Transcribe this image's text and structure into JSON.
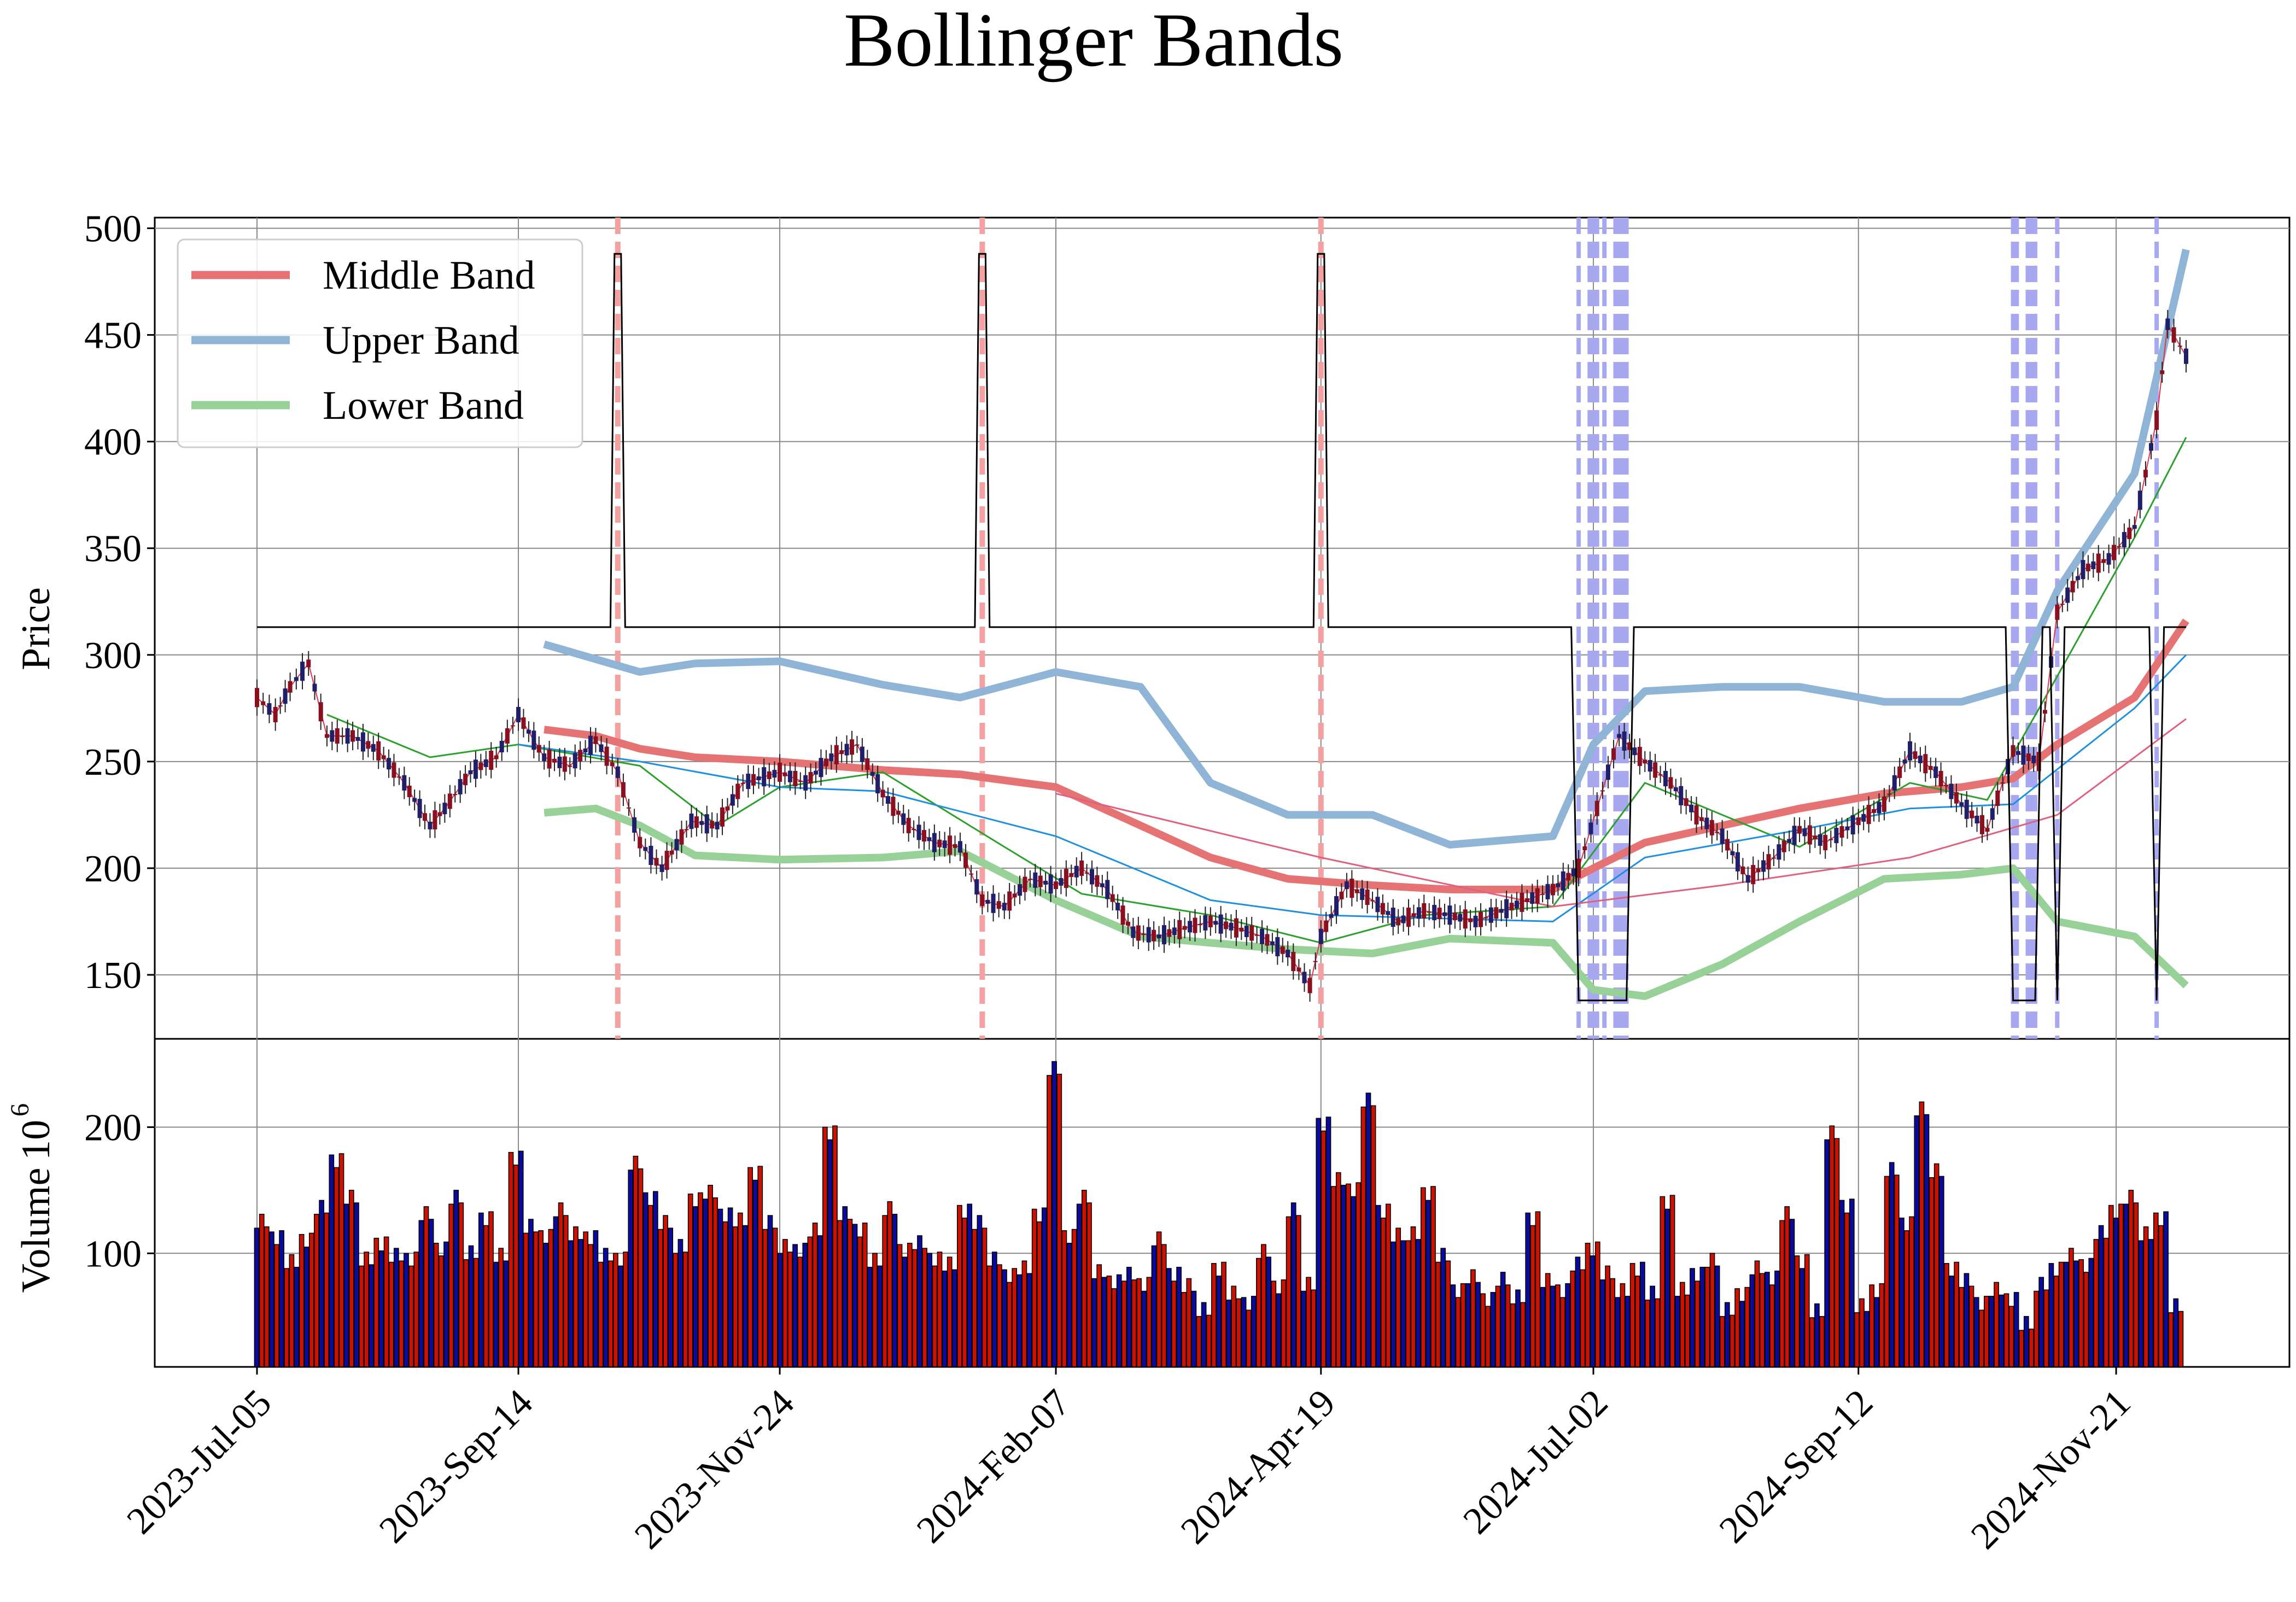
{
  "chart_data": {
    "type": "candlestick",
    "title": "Bollinger Bands",
    "price_panel": {
      "ylabel": "Price",
      "yticks": [
        150,
        200,
        250,
        300,
        350,
        400,
        450,
        500
      ],
      "ylim": [
        120,
        505
      ],
      "grid": true,
      "legend_position": "top-left",
      "legend": [
        "Middle Band",
        "Upper Band",
        "Lower Band"
      ],
      "colors": {
        "middle_band": "#e57373",
        "upper_band": "#8fb4d6",
        "lower_band": "#98d198",
        "ma_short": "#e0334d",
        "ma_mid_green": "#2ca02c",
        "ma_mid_blue": "#1f8fe0",
        "ma_long": "#e06080",
        "signal": "#000000",
        "sell_marker": "#f4a0a0",
        "buy_marker": "#a8a8f0"
      },
      "signal_levels": {
        "high": 488,
        "neutral": 313,
        "low": 138
      },
      "sell_marker_dates": [
        "2023-10-11",
        "2024-01-18",
        "2024-04-19"
      ],
      "buy_marker_dates": [
        "2024-06-28",
        "2024-07-01",
        "2024-07-02",
        "2024-07-03",
        "2024-07-05",
        "2024-07-08",
        "2024-07-09",
        "2024-07-10",
        "2024-07-11",
        "2024-10-24",
        "2024-10-25",
        "2024-10-28",
        "2024-10-29",
        "2024-10-30",
        "2024-11-05",
        "2024-12-02"
      ],
      "x_range": [
        "2023-07-05",
        "2024-12-10"
      ],
      "close_points": [
        [
          "2023-07-05",
          280
        ],
        [
          "2023-07-10",
          272
        ],
        [
          "2023-07-14",
          285
        ],
        [
          "2023-07-19",
          296
        ],
        [
          "2023-07-24",
          262
        ],
        [
          "2023-07-31",
          262
        ],
        [
          "2023-08-07",
          255
        ],
        [
          "2023-08-14",
          240
        ],
        [
          "2023-08-21",
          220
        ],
        [
          "2023-08-25",
          228
        ],
        [
          "2023-09-01",
          245
        ],
        [
          "2023-09-08",
          252
        ],
        [
          "2023-09-14",
          272
        ],
        [
          "2023-09-21",
          252
        ],
        [
          "2023-09-28",
          248
        ],
        [
          "2023-10-05",
          260
        ],
        [
          "2023-10-11",
          245
        ],
        [
          "2023-10-17",
          212
        ],
        [
          "2023-10-23",
          200
        ],
        [
          "2023-10-31",
          222
        ],
        [
          "2023-11-07",
          220
        ],
        [
          "2023-11-14",
          240
        ],
        [
          "2023-11-24",
          245
        ],
        [
          "2023-12-01",
          240
        ],
        [
          "2023-12-08",
          252
        ],
        [
          "2023-12-15",
          258
        ],
        [
          "2023-12-22",
          235
        ],
        [
          "2023-12-29",
          220
        ],
        [
          "2024-01-05",
          212
        ],
        [
          "2024-01-12",
          210
        ],
        [
          "2024-01-18",
          185
        ],
        [
          "2024-01-24",
          182
        ],
        [
          "2024-01-31",
          195
        ],
        [
          "2024-02-07",
          192
        ],
        [
          "2024-02-14",
          200
        ],
        [
          "2024-02-21",
          190
        ],
        [
          "2024-02-28",
          170
        ],
        [
          "2024-03-06",
          168
        ],
        [
          "2024-03-13",
          172
        ],
        [
          "2024-03-20",
          175
        ],
        [
          "2024-03-27",
          172
        ],
        [
          "2024-04-03",
          168
        ],
        [
          "2024-04-10",
          160
        ],
        [
          "2024-04-16",
          145
        ],
        [
          "2024-04-19",
          168
        ],
        [
          "2024-04-26",
          192
        ],
        [
          "2024-05-03",
          185
        ],
        [
          "2024-05-10",
          175
        ],
        [
          "2024-05-17",
          180
        ],
        [
          "2024-05-24",
          178
        ],
        [
          "2024-05-31",
          175
        ],
        [
          "2024-06-07",
          180
        ],
        [
          "2024-06-14",
          185
        ],
        [
          "2024-06-21",
          190
        ],
        [
          "2024-06-28",
          200
        ],
        [
          "2024-07-03",
          228
        ],
        [
          "2024-07-09",
          262
        ],
        [
          "2024-07-16",
          250
        ],
        [
          "2024-07-23",
          240
        ],
        [
          "2024-07-30",
          225
        ],
        [
          "2024-08-06",
          215
        ],
        [
          "2024-08-13",
          195
        ],
        [
          "2024-08-20",
          205
        ],
        [
          "2024-08-27",
          218
        ],
        [
          "2024-09-03",
          212
        ],
        [
          "2024-09-12",
          222
        ],
        [
          "2024-09-19",
          230
        ],
        [
          "2024-09-26",
          255
        ],
        [
          "2024-10-03",
          245
        ],
        [
          "2024-10-10",
          230
        ],
        [
          "2024-10-17",
          218
        ],
        [
          "2024-10-24",
          255
        ],
        [
          "2024-10-31",
          250
        ],
        [
          "2024-11-05",
          320
        ],
        [
          "2024-11-12",
          340
        ],
        [
          "2024-11-19",
          345
        ],
        [
          "2024-11-26",
          360
        ],
        [
          "2024-12-02",
          410
        ],
        [
          "2024-12-05",
          455
        ],
        [
          "2024-12-10",
          440
        ]
      ],
      "bands": [
        {
          "date": "2023-09-21",
          "upper": 305,
          "middle": 265,
          "lower": 226
        },
        {
          "date": "2023-10-05",
          "upper": 298,
          "middle": 262,
          "lower": 228
        },
        {
          "date": "2023-10-17",
          "upper": 292,
          "middle": 256,
          "lower": 220
        },
        {
          "date": "2023-11-01",
          "upper": 296,
          "middle": 252,
          "lower": 206
        },
        {
          "date": "2023-11-24",
          "upper": 297,
          "middle": 250,
          "lower": 204
        },
        {
          "date": "2023-12-22",
          "upper": 286,
          "middle": 246,
          "lower": 205
        },
        {
          "date": "2024-01-12",
          "upper": 280,
          "middle": 244,
          "lower": 208
        },
        {
          "date": "2024-02-07",
          "upper": 292,
          "middle": 238,
          "lower": 185
        },
        {
          "date": "2024-03-01",
          "upper": 285,
          "middle": 220,
          "lower": 168
        },
        {
          "date": "2024-03-20",
          "upper": 240,
          "middle": 205,
          "lower": 165
        },
        {
          "date": "2024-04-10",
          "upper": 225,
          "middle": 195,
          "lower": 162
        },
        {
          "date": "2024-05-03",
          "upper": 225,
          "middle": 192,
          "lower": 160
        },
        {
          "date": "2024-05-24",
          "upper": 211,
          "middle": 190,
          "lower": 167
        },
        {
          "date": "2024-06-21",
          "upper": 215,
          "middle": 190,
          "lower": 165
        },
        {
          "date": "2024-07-02",
          "upper": 258,
          "middle": 200,
          "lower": 143
        },
        {
          "date": "2024-07-16",
          "upper": 283,
          "middle": 212,
          "lower": 140
        },
        {
          "date": "2024-08-06",
          "upper": 285,
          "middle": 220,
          "lower": 155
        },
        {
          "date": "2024-08-27",
          "upper": 285,
          "middle": 228,
          "lower": 175
        },
        {
          "date": "2024-09-19",
          "upper": 278,
          "middle": 235,
          "lower": 195
        },
        {
          "date": "2024-10-10",
          "upper": 278,
          "middle": 238,
          "lower": 197
        },
        {
          "date": "2024-10-24",
          "upper": 285,
          "middle": 242,
          "lower": 200
        },
        {
          "date": "2024-11-05",
          "upper": 330,
          "middle": 258,
          "lower": 175
        },
        {
          "date": "2024-11-26",
          "upper": 385,
          "middle": 280,
          "lower": 168
        },
        {
          "date": "2024-12-10",
          "upper": 490,
          "middle": 316,
          "lower": 145
        }
      ],
      "moving_averages": {
        "green": [
          [
            "2023-07-24",
            272
          ],
          [
            "2023-08-21",
            252
          ],
          [
            "2023-09-14",
            258
          ],
          [
            "2023-10-17",
            248
          ],
          [
            "2023-11-07",
            220
          ],
          [
            "2023-11-24",
            238
          ],
          [
            "2023-12-22",
            245
          ],
          [
            "2024-01-24",
            210
          ],
          [
            "2024-02-14",
            188
          ],
          [
            "2024-03-20",
            178
          ],
          [
            "2024-04-19",
            165
          ],
          [
            "2024-05-17",
            178
          ],
          [
            "2024-06-21",
            182
          ],
          [
            "2024-07-16",
            240
          ],
          [
            "2024-08-06",
            225
          ],
          [
            "2024-08-27",
            210
          ],
          [
            "2024-09-26",
            240
          ],
          [
            "2024-10-17",
            232
          ],
          [
            "2024-11-05",
            290
          ],
          [
            "2024-11-26",
            355
          ],
          [
            "2024-12-10",
            402
          ]
        ],
        "blue": [
          [
            "2023-09-14",
            258
          ],
          [
            "2023-10-17",
            250
          ],
          [
            "2023-11-24",
            238
          ],
          [
            "2023-12-22",
            236
          ],
          [
            "2024-02-07",
            215
          ],
          [
            "2024-03-20",
            185
          ],
          [
            "2024-04-19",
            178
          ],
          [
            "2024-06-21",
            175
          ],
          [
            "2024-07-16",
            205
          ],
          [
            "2024-08-27",
            218
          ],
          [
            "2024-09-26",
            228
          ],
          [
            "2024-10-24",
            230
          ],
          [
            "2024-11-26",
            275
          ],
          [
            "2024-12-10",
            300
          ]
        ],
        "pink": [
          [
            "2024-02-07",
            235
          ],
          [
            "2024-04-19",
            205
          ],
          [
            "2024-06-21",
            182
          ],
          [
            "2024-08-06",
            192
          ],
          [
            "2024-09-26",
            205
          ],
          [
            "2024-11-05",
            225
          ],
          [
            "2024-12-10",
            270
          ]
        ]
      }
    },
    "volume_panel": {
      "ylabel": "Volume",
      "scale_label": "10",
      "scale_exponent": "6",
      "yticks": [
        100,
        200
      ],
      "ylim": [
        10,
        270
      ],
      "up_color": "#cc1100",
      "down_color": "#0a0a9e",
      "bar_outline": "#000000",
      "sample_values": [
        130,
        115,
        95,
        110,
        135,
        170,
        140,
        100,
        110,
        100,
        95,
        130,
        100,
        140,
        105,
        130,
        100,
        175,
        120,
        110,
        130,
        120,
        115,
        100,
        95,
        170,
        140,
        120,
        110,
        145,
        150,
        130,
        125,
        160,
        120,
        110,
        105,
        120,
        195,
        130,
        115,
        90,
        140,
        105,
        110,
        95,
        90,
        130,
        120,
        100,
        85,
        90,
        130,
        245,
        110,
        140,
        90,
        80,
        85,
        75,
        110,
        80,
        70,
        60,
        90,
        70,
        60,
        100,
        70,
        130,
        80,
        205,
        160,
        150,
        220,
        130,
        110,
        120,
        150,
        100,
        70,
        80,
        60,
        75,
        70,
        130,
        80,
        70,
        90,
        100,
        80,
        75,
        90,
        70,
        140,
        70,
        80,
        90,
        60,
        70,
        90,
        80,
        130,
        90,
        50,
        200,
        140,
        60,
        70,
        165,
        120,
        210,
        170,
        90,
        80,
        60,
        70,
        60,
        40,
        80,
        90,
        100,
        90,
        115,
        130,
        140,
        120,
        130,
        60
      ]
    },
    "x_ticks": [
      "2023-Jul-05",
      "2023-Sep-14",
      "2023-Nov-24",
      "2024-Feb-07",
      "2024-Apr-19",
      "2024-Jul-02",
      "2024-Sep-12",
      "2024-Nov-21"
    ]
  }
}
